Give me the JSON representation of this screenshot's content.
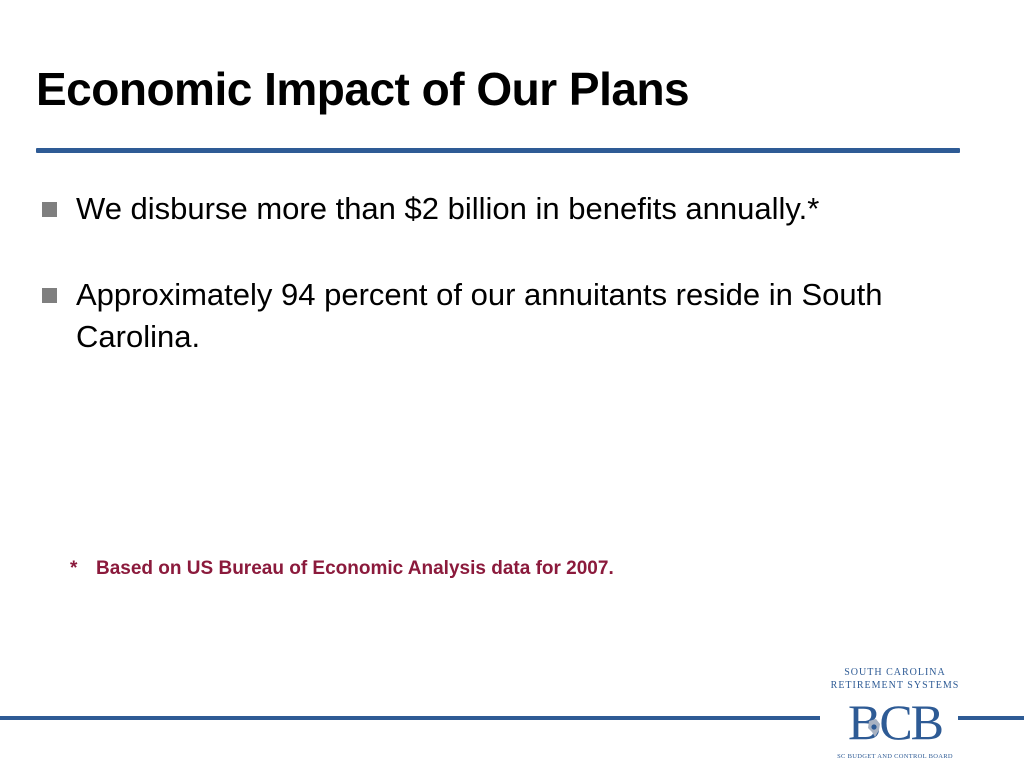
{
  "slide": {
    "title": "Economic Impact of Our Plans",
    "bullets": [
      {
        "text": "We disburse more than $2 billion in benefits annually.*"
      },
      {
        "text": "Approximately 94 percent of our annuitants reside in South Carolina."
      }
    ],
    "footnote": {
      "marker": "*",
      "text": "Based on US Bureau of Economic Analysis data for 2007."
    },
    "logo": {
      "line1": "SOUTH CAROLINA",
      "line2": "RETIREMENT SYSTEMS",
      "mark": "BCB",
      "subtitle": "SC BUDGET AND CONTROL BOARD"
    }
  },
  "colors": {
    "accent": "#2e5b95",
    "footnote": "#8b1a3c",
    "bullet_marker": "#7f7f7f"
  },
  "icons": {
    "bullet": "square-bullet-icon",
    "logo_map": "south-carolina-map-icon"
  }
}
